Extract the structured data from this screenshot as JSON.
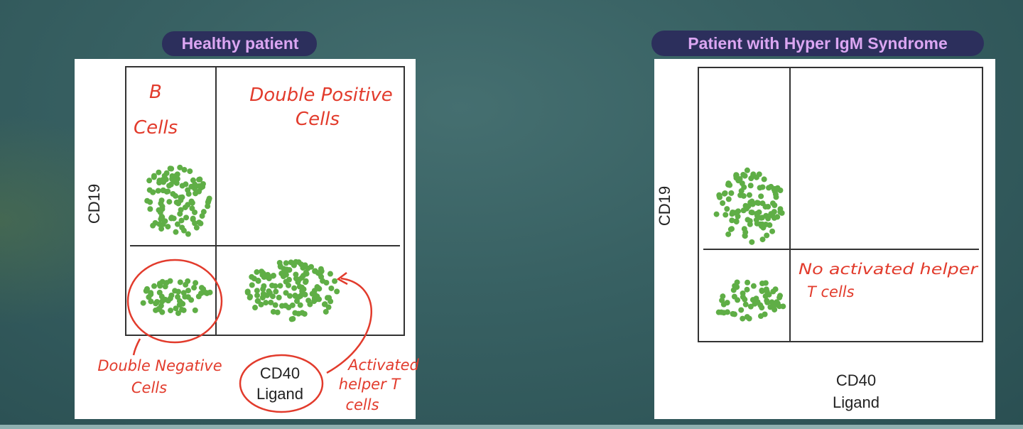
{
  "colors": {
    "dot": "#5fae46",
    "annotation": "#e23b2c",
    "pill_bg": "#2c2f5c",
    "pill_text": "#dba6f2"
  },
  "panels": [
    {
      "title": "Healthy patient",
      "y_axis_label": "CD19",
      "x_axis_label_line1": "CD40",
      "x_axis_label_line2": "Ligand",
      "annotations": {
        "b_cells_line1": "B",
        "b_cells_line2": "Cells",
        "double_positive_line1": "Double Positive",
        "double_positive_line2": "Cells",
        "double_negative_line1": "Double Negative",
        "double_negative_line2": "Cells",
        "activated_line1": "Activated",
        "activated_line2": "helper T",
        "activated_line3": "cells"
      }
    },
    {
      "title": "Patient with Hyper IgM Syndrome",
      "y_axis_label": "CD19",
      "x_axis_label_line1": "CD40",
      "x_axis_label_line2": "Ligand",
      "annotations": {
        "no_activated_line1": "No activated helper",
        "no_activated_line2": "T cells"
      }
    }
  ]
}
